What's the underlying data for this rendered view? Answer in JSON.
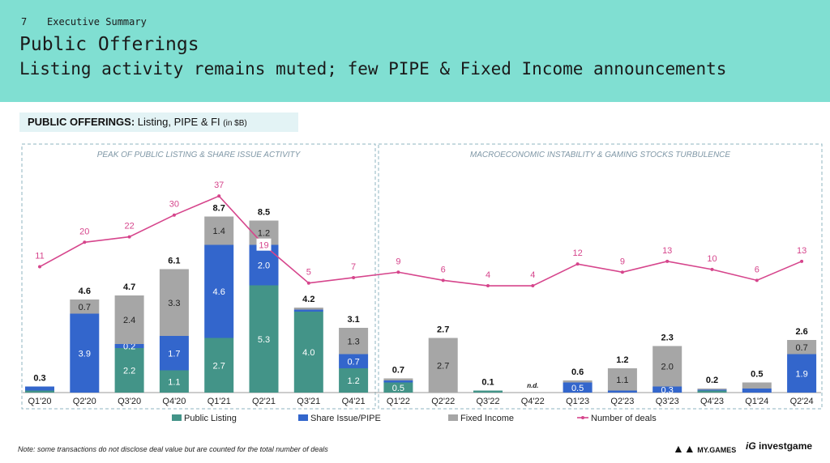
{
  "header": {
    "page_number": "7",
    "section": "Executive Summary",
    "title": "Public Offerings",
    "subtitle": "Listing activity remains muted; few PIPE & Fixed Income announcements"
  },
  "chart_box": {
    "title_bold": "PUBLIC OFFERINGS:",
    "title_rest": " Listing, PIPE & FI ",
    "unit": "(in $B)"
  },
  "note": "Note: some transactions do not disclose deal value but are counted for the total number of deals",
  "logos": {
    "mygames": "MY.GAMES",
    "investgame": "investgame"
  },
  "chart_data": {
    "type": "bar",
    "stacked": true,
    "sections": [
      {
        "label": "PEAK OF PUBLIC LISTING & SHARE ISSUE ACTIVITY",
        "from": "Q1'20",
        "to": "Q4'21"
      },
      {
        "label": "MACROECONOMIC INSTABILITY & GAMING STOCKS TURBULENCE",
        "from": "Q1'22",
        "to": "Q2'24"
      }
    ],
    "categories": [
      "Q1'20",
      "Q2'20",
      "Q3'20",
      "Q4'20",
      "Q1'21",
      "Q2'21",
      "Q3'21",
      "Q4'21",
      "Q1'22",
      "Q2'22",
      "Q3'22",
      "Q4'22",
      "Q1'23",
      "Q2'23",
      "Q3'23",
      "Q4'23",
      "Q1'24",
      "Q2'24"
    ],
    "series": [
      {
        "name": "Public Listing",
        "color": "#439488",
        "values": [
          0.1,
          0,
          2.2,
          1.1,
          2.7,
          5.3,
          4.0,
          1.2,
          0.5,
          0,
          0.1,
          0,
          0,
          0,
          0,
          0.1,
          0,
          0
        ],
        "labels": [
          "",
          "",
          "2.2",
          "1.1",
          "2.7",
          "5.3",
          "4.0",
          "1.2",
          "0.5",
          "",
          "",
          "",
          "",
          "",
          "",
          "",
          "",
          ""
        ]
      },
      {
        "name": "Share Issue/PIPE",
        "color": "#3366cc",
        "values": [
          0.2,
          3.9,
          0.2,
          1.7,
          4.6,
          2.0,
          0.1,
          0.7,
          0.1,
          0,
          0,
          0,
          0.5,
          0.1,
          0.3,
          0.05,
          0.2,
          1.9
        ],
        "labels": [
          "",
          "3.9",
          "0.2",
          "1.7",
          "4.6",
          "2.0",
          "",
          "0.7",
          "",
          "",
          "",
          "",
          "0.5",
          "",
          "0.3",
          "",
          "",
          "1.9"
        ]
      },
      {
        "name": "Fixed Income",
        "color": "#a6a6a6",
        "values": [
          0,
          0.7,
          2.4,
          3.3,
          1.4,
          1.2,
          0.1,
          1.3,
          0.1,
          2.7,
          0,
          0,
          0.1,
          1.1,
          2.0,
          0.05,
          0.3,
          0.7
        ],
        "labels": [
          "",
          "0.7",
          "2.4",
          "3.3",
          "1.4",
          "1.2",
          "",
          "1.3",
          "",
          "2.7",
          "",
          "",
          "",
          "1.1",
          "2.0",
          "",
          "",
          "0.7"
        ]
      }
    ],
    "totals": [
      "0.3",
      "4.6",
      "4.7",
      "6.1",
      "8.7",
      "8.5",
      "4.2",
      "3.1",
      "0.7",
      "2.7",
      "0.1",
      "n.d.",
      "0.6",
      "1.2",
      "2.3",
      "0.2",
      "0.5",
      "2.6"
    ],
    "line": {
      "name": "Number of deals",
      "color": "#d6458c",
      "values": [
        11,
        20,
        22,
        30,
        37,
        19,
        5,
        7,
        9,
        6,
        4,
        4,
        12,
        9,
        13,
        10,
        6,
        13
      ]
    },
    "legend_position": "bottom"
  }
}
